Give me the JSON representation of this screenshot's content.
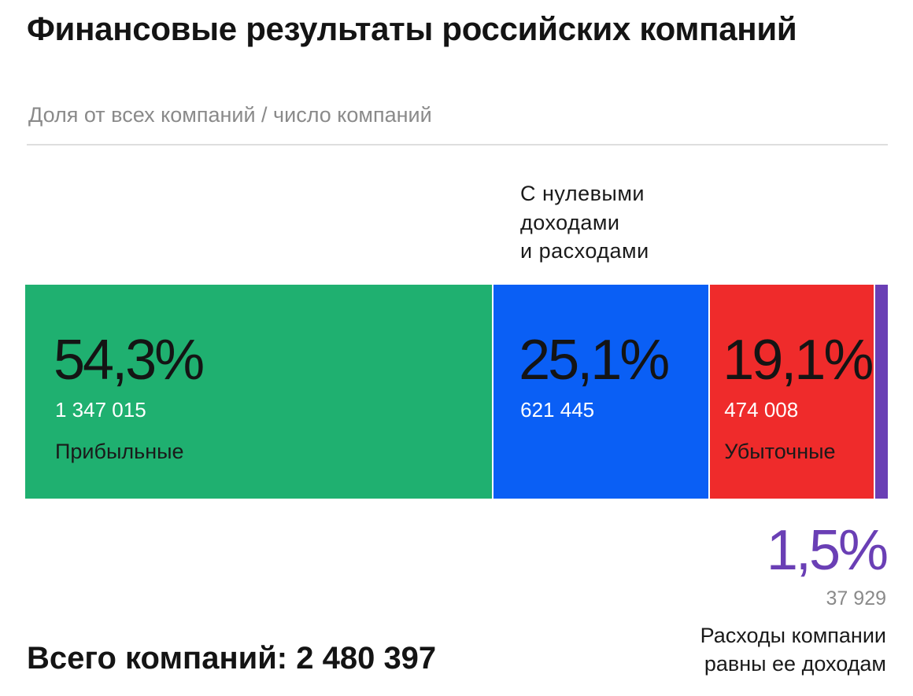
{
  "title": "Финансовые результаты российских компаний",
  "subtitle": "Доля от всех компаний / число компаний",
  "total_label": "Всего компаний: 2 480 397",
  "chart_data": {
    "type": "bar",
    "orientation": "horizontal-stacked",
    "title": "Финансовые результаты российских компаний",
    "subtitle": "Доля от всех компаний / число компаний",
    "segments": [
      {
        "name": "Прибыльные",
        "percent": 54.3,
        "percent_label": "54,3%",
        "count": 1347015,
        "count_label": "1 347 015",
        "color": "#1fb070"
      },
      {
        "name": "С нулевыми доходами и расходами",
        "percent": 25.1,
        "percent_label": "25,1%",
        "count": 621445,
        "count_label": "621 445",
        "color": "#0a5ff5"
      },
      {
        "name": "Убыточные",
        "percent": 19.1,
        "percent_label": "19,1%",
        "count": 474008,
        "count_label": "474 008",
        "color": "#ef2b2b"
      },
      {
        "name": "Расходы компании равны ее доходам",
        "percent": 1.5,
        "percent_label": "1,5%",
        "count": 37929,
        "count_label": "37 929",
        "color": "#6a3fb5"
      }
    ],
    "total": 2480397
  }
}
